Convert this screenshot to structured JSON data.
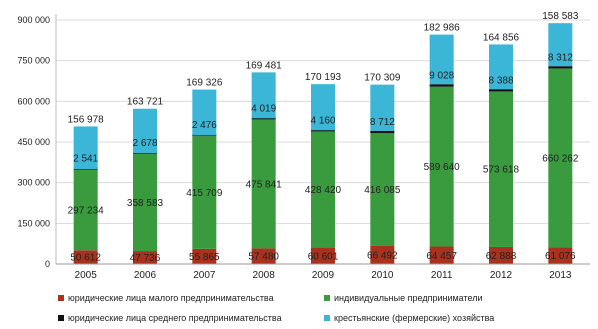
{
  "chart_data": {
    "type": "bar",
    "stacked": true,
    "categories": [
      "2005",
      "2006",
      "2007",
      "2008",
      "2009",
      "2010",
      "2011",
      "2012",
      "2013"
    ],
    "series": [
      {
        "name": "юридические лица малого предпринимательства",
        "color": "#a8321e",
        "values": [
          50612,
          47736,
          55865,
          57480,
          60601,
          66492,
          64457,
          62888,
          61076
        ],
        "labels": [
          "50 612",
          "47 736",
          "55 865",
          "57 480",
          "60 601",
          "66 492",
          "64 457",
          "62 888",
          "61 076"
        ]
      },
      {
        "name": "индивидуальные предприниматели",
        "color": "#3a9a3e",
        "values": [
          297234,
          358583,
          415709,
          475841,
          428420,
          416085,
          589640,
          573618,
          660262
        ],
        "labels": [
          "297 234",
          "358 583",
          "415 709",
          "475 841",
          "428 420",
          "416 085",
          "589 640",
          "573 618",
          "660 262"
        ]
      },
      {
        "name": "юридические лица среднего предпринимательства",
        "color": "#111111",
        "values": [
          2541,
          2678,
          2476,
          4019,
          4160,
          8712,
          9028,
          8388,
          8312
        ],
        "labels": [
          "2 541",
          "2 678",
          "2 476",
          "4 019",
          "4 160",
          "8 712",
          "9 028",
          "8 388",
          "8 312"
        ]
      },
      {
        "name": "крестьянские (фермерские) хозяйства",
        "color": "#3bb6d6",
        "values": [
          156978,
          163721,
          169326,
          169481,
          170193,
          170309,
          182986,
          164856,
          158583
        ],
        "labels": [
          "156 978",
          "163 721",
          "169 326",
          "169 481",
          "170 193",
          "170 309",
          "182 986",
          "164 856",
          "158 583"
        ]
      }
    ],
    "ylim": [
      0,
      900000
    ],
    "yticks": [
      0,
      150000,
      300000,
      450000,
      600000,
      750000,
      900000
    ],
    "ytick_labels": [
      "0",
      "150 000",
      "300 000",
      "450 000",
      "600 000",
      "750 000",
      "900 000"
    ],
    "grid": true,
    "legend_position": "bottom"
  }
}
